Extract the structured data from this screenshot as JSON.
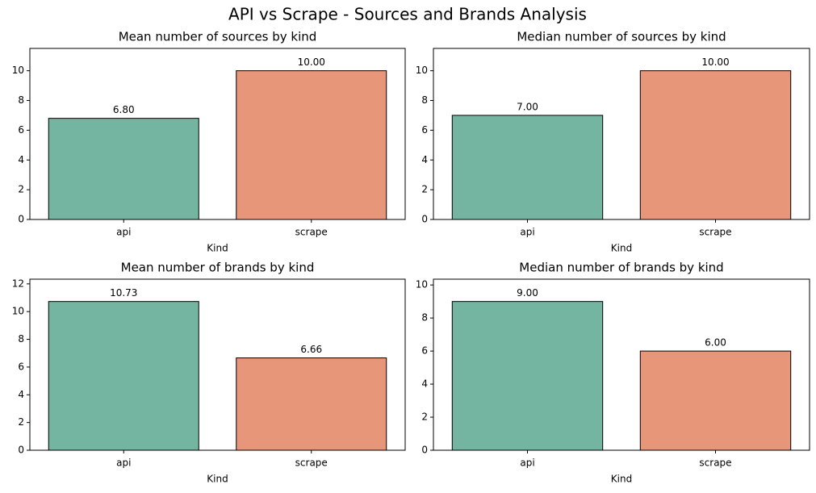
{
  "title": "API vs Scrape - Sources and Brands Analysis",
  "chart_data": [
    {
      "type": "bar",
      "title": "Mean number of sources by kind",
      "x_label": "Kind",
      "categories": [
        "api",
        "scrape"
      ],
      "values": [
        6.8,
        10.0
      ],
      "value_labels": [
        "6.80",
        "10.00"
      ],
      "colors": [
        "#73b5a0",
        "#e8967a"
      ],
      "ylim": [
        0,
        11.5
      ],
      "yticks": [
        0,
        2,
        4,
        6,
        8,
        10
      ]
    },
    {
      "type": "bar",
      "title": "Median number of sources by kind",
      "x_label": "Kind",
      "categories": [
        "api",
        "scrape"
      ],
      "values": [
        7.0,
        10.0
      ],
      "value_labels": [
        "7.00",
        "10.00"
      ],
      "colors": [
        "#73b5a0",
        "#e8967a"
      ],
      "ylim": [
        0,
        11.5
      ],
      "yticks": [
        0,
        2,
        4,
        6,
        8,
        10
      ]
    },
    {
      "type": "bar",
      "title": "Mean number of brands by kind",
      "x_label": "Kind",
      "categories": [
        "api",
        "scrape"
      ],
      "values": [
        10.73,
        6.66
      ],
      "value_labels": [
        "10.73",
        "6.66"
      ],
      "colors": [
        "#73b5a0",
        "#e8967a"
      ],
      "ylim": [
        0,
        12.34
      ],
      "yticks": [
        0,
        2,
        4,
        6,
        8,
        10,
        12
      ]
    },
    {
      "type": "bar",
      "title": "Median number of brands by kind",
      "x_label": "Kind",
      "categories": [
        "api",
        "scrape"
      ],
      "values": [
        9.0,
        6.0
      ],
      "value_labels": [
        "9.00",
        "6.00"
      ],
      "colors": [
        "#73b5a0",
        "#e8967a"
      ],
      "ylim": [
        0,
        10.35
      ],
      "yticks": [
        0,
        2,
        4,
        6,
        8,
        10
      ]
    }
  ]
}
